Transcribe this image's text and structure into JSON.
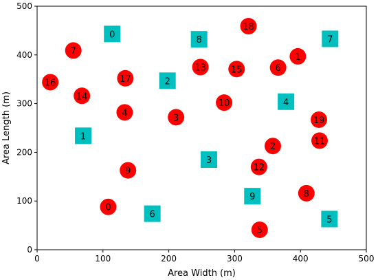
{
  "chart_data": {
    "type": "scatter",
    "title": "",
    "xlabel": "Area Width (m)",
    "ylabel": "Area Length (m)",
    "xlim": [
      0,
      500
    ],
    "ylim": [
      0,
      500
    ],
    "xticks": [
      "0",
      "100",
      "200",
      "300",
      "400",
      "500"
    ],
    "yticks": [
      "0",
      "100",
      "200",
      "300",
      "400",
      "500"
    ],
    "grid": false,
    "legend": "none",
    "series": [
      {
        "marker": "circle",
        "color": "#ff0000",
        "points": [
          {
            "label": "0",
            "x": 108,
            "y": 88
          },
          {
            "label": "1",
            "x": 396,
            "y": 397
          },
          {
            "label": "2",
            "x": 358,
            "y": 213
          },
          {
            "label": "3",
            "x": 211,
            "y": 272
          },
          {
            "label": "4",
            "x": 133,
            "y": 282
          },
          {
            "label": "5",
            "x": 338,
            "y": 41
          },
          {
            "label": "6",
            "x": 366,
            "y": 374
          },
          {
            "label": "7",
            "x": 55,
            "y": 409
          },
          {
            "label": "8",
            "x": 409,
            "y": 116
          },
          {
            "label": "9",
            "x": 138,
            "y": 163
          },
          {
            "label": "10",
            "x": 284,
            "y": 302
          },
          {
            "label": "11",
            "x": 429,
            "y": 224
          },
          {
            "label": "12",
            "x": 337,
            "y": 170
          },
          {
            "label": "13",
            "x": 248,
            "y": 375
          },
          {
            "label": "14",
            "x": 68,
            "y": 316
          },
          {
            "label": "15",
            "x": 303,
            "y": 371
          },
          {
            "label": "16",
            "x": 20,
            "y": 344
          },
          {
            "label": "17",
            "x": 134,
            "y": 352
          },
          {
            "label": "18",
            "x": 321,
            "y": 459
          },
          {
            "label": "19",
            "x": 428,
            "y": 267
          }
        ]
      },
      {
        "marker": "square",
        "color": "#00bfbf",
        "points": [
          {
            "label": "0",
            "x": 114,
            "y": 443
          },
          {
            "label": "1",
            "x": 70,
            "y": 234
          },
          {
            "label": "2",
            "x": 198,
            "y": 347
          },
          {
            "label": "3",
            "x": 261,
            "y": 185
          },
          {
            "label": "4",
            "x": 378,
            "y": 304
          },
          {
            "label": "5",
            "x": 444,
            "y": 63
          },
          {
            "label": "6",
            "x": 175,
            "y": 74
          },
          {
            "label": "7",
            "x": 445,
            "y": 433
          },
          {
            "label": "8",
            "x": 246,
            "y": 432
          },
          {
            "label": "9",
            "x": 327,
            "y": 110
          }
        ]
      }
    ]
  }
}
